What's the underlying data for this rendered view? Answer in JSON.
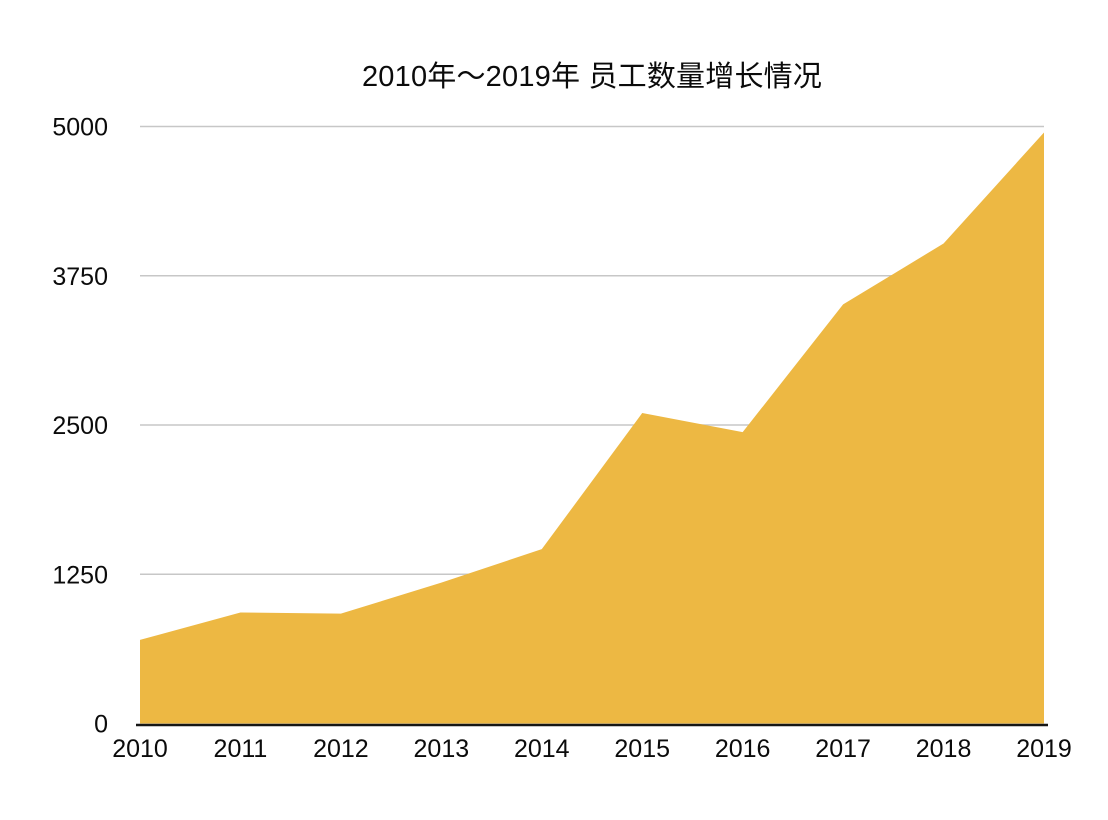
{
  "chart_data": {
    "type": "area",
    "title": "2010年～2019年 员工数量增长情况",
    "categories": [
      "2010",
      "2011",
      "2012",
      "2013",
      "2014",
      "2015",
      "2016",
      "2017",
      "2018",
      "2019"
    ],
    "values": [
      700,
      930,
      920,
      1180,
      1460,
      2600,
      2440,
      3510,
      4020,
      4950
    ],
    "xlabel": "",
    "ylabel": "",
    "ylim": [
      0,
      5000
    ],
    "yticks": [
      0,
      1250,
      2500,
      3750,
      5000
    ],
    "grid": "horizontal-gridlines-on",
    "legend": "none",
    "colors": {
      "area_fill": "#EDB843",
      "gridline": "#C7C7C7",
      "axis_line": "#161616",
      "label_text": "#0B0B0B",
      "background": "#FFFFFF"
    }
  }
}
